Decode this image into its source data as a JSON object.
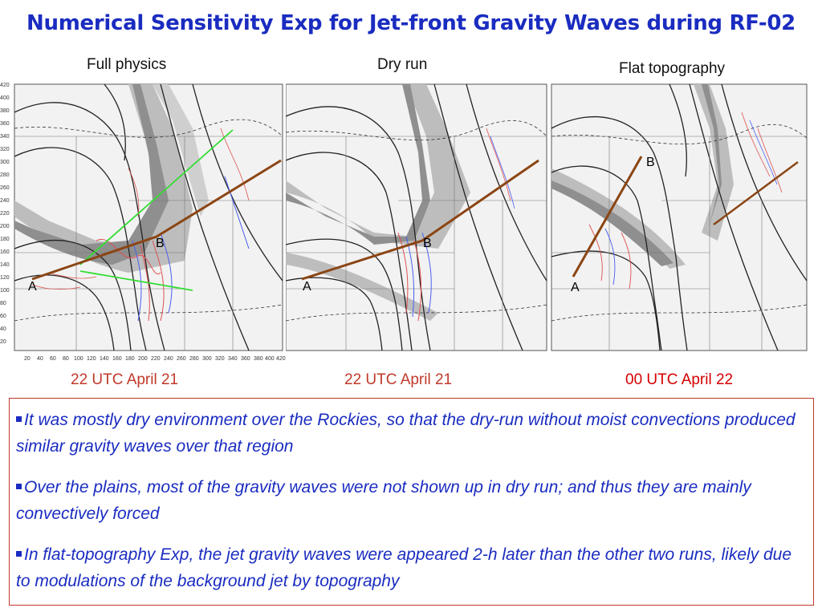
{
  "title": "Numerical Sensitivity Exp for Jet-front Gravity Waves during RF-02",
  "panels": [
    {
      "label": "Full physics",
      "time": "22 UTC April 21",
      "time_color": "#c0392b",
      "point_a": "A",
      "point_b": "B"
    },
    {
      "label": "Dry run",
      "time": "22 UTC April 21",
      "time_color": "#c0392b",
      "point_a": "A",
      "point_b": "B"
    },
    {
      "label": "Flat topography",
      "time": "00 UTC April 22",
      "time_color": "#d40000",
      "point_a": "A",
      "point_b": "B"
    }
  ],
  "y_ticks": [
    "420",
    "400",
    "380",
    "360",
    "340",
    "320",
    "300",
    "280",
    "260",
    "240",
    "220",
    "200",
    "180",
    "160",
    "140",
    "120",
    "100",
    "80",
    "60",
    "40",
    "20"
  ],
  "x_ticks": [
    "20",
    "40",
    "60",
    "80",
    "100",
    "120",
    "140",
    "160",
    "180",
    "200",
    "220",
    "240",
    "260",
    "280",
    "300",
    "320",
    "340",
    "360",
    "380",
    "400",
    "420"
  ],
  "bullets": [
    "It was mostly dry environment over the Rockies, so that the dry-run without moist convections produced similar gravity waves over that region",
    "Over the plains, most of the gravity waves were not shown up in dry run; and thus they are mainly convectively forced",
    "In flat-topography Exp, the jet gravity waves were appeared 2-h later than the other two runs, likely due to modulations of the background jet by topography"
  ],
  "colors": {
    "title": "#1a2cc0",
    "bullet_text": "#1a2cc0",
    "box_border": "#c0392b",
    "cross_section_line": "#8b4513",
    "aux_line": "#33dd33"
  }
}
